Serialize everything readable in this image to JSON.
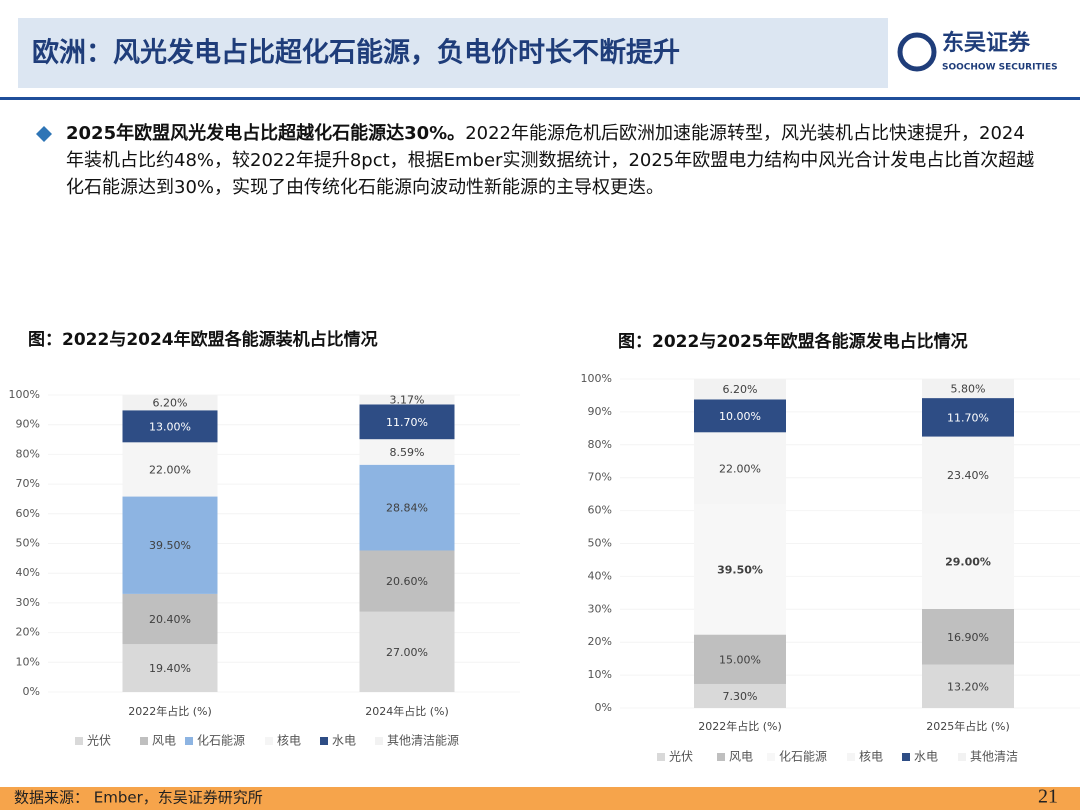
{
  "header": {
    "title": "欧洲：风光发电占比超化石能源，负电价时长不断提升",
    "logo": "东吴证券",
    "logo_sub": "SOOCHOW SECURITIES"
  },
  "bullet": {
    "bold": "2025年欧盟风光发电占比超越化石能源达30%。",
    "text": "2022年能源危机后欧洲加速能源转型，风光装机占比快速提升，2024年装机占比约48%，较2022年提升8pct，根据Ember实测数据统计，2025年欧盟电力结构中风光合计发电占比首次超越化石能源达到30%，实现了由传统化石能源向波动性新能源的主导权更迭。"
  },
  "footer": {
    "source": "数据来源： Ember，东吴证券研究所",
    "page": "21"
  },
  "chart_data": [
    {
      "type": "bar",
      "stacked": "percent",
      "title": "图：2022与2024年欧盟各能源装机占比情况",
      "categories": [
        "2022年占比 (%)",
        "2024年占比 (%)"
      ],
      "series": [
        {
          "name": "光伏",
          "color": "#d9d9d9",
          "values": [
            19.4,
            27.0
          ],
          "value_labels": [
            "19.40%",
            "27.00%"
          ]
        },
        {
          "name": "风电",
          "color": "#bfbfbf",
          "values": [
            20.4,
            20.6
          ],
          "value_labels": [
            "20.40%",
            "20.60%"
          ]
        },
        {
          "name": "化石能源",
          "color": "#8db4e2",
          "values": [
            39.5,
            28.84
          ],
          "value_labels": [
            "39.50%",
            "28.84%"
          ]
        },
        {
          "name": "核电",
          "color": "#f5f5f5",
          "values": [
            22.0,
            8.59
          ],
          "value_labels": [
            "22.00%",
            "8.59%"
          ]
        },
        {
          "name": "水电",
          "color": "#2e4d85",
          "values": [
            13.0,
            11.7
          ],
          "value_labels": [
            "13.00%",
            "11.70%"
          ]
        },
        {
          "name": "其他清洁能源",
          "color": "#f2f2f2",
          "values": [
            6.2,
            3.17
          ],
          "value_labels": [
            "6.20%",
            "3.17%"
          ]
        }
      ],
      "ylim": [
        0,
        100
      ],
      "yticks": [
        {
          "value": 0,
          "label": "0%"
        },
        {
          "value": 10,
          "label": "10%"
        },
        {
          "value": 20,
          "label": "20%"
        },
        {
          "value": 30,
          "label": "30%"
        },
        {
          "value": 40,
          "label": "40%"
        },
        {
          "value": 50,
          "label": "50%"
        },
        {
          "value": 60,
          "label": "60%"
        },
        {
          "value": 70,
          "label": "70%"
        },
        {
          "value": 80,
          "label": "80%"
        },
        {
          "value": 90,
          "label": "90%"
        },
        {
          "value": 100,
          "label": "100%"
        }
      ],
      "legend": "bottom"
    },
    {
      "type": "bar",
      "stacked": "percent",
      "title": "图：2022与2025年欧盟各能源发电占比情况",
      "categories": [
        "2022年占比 (%)",
        "2025年占比 (%)"
      ],
      "series": [
        {
          "name": "光伏",
          "color": "#d9d9d9",
          "values": [
            7.3,
            13.2
          ],
          "value_labels": [
            "7.30%",
            "13.20%"
          ]
        },
        {
          "name": "风电",
          "color": "#bfbfbf",
          "values": [
            15.0,
            16.9
          ],
          "value_labels": [
            "15.00%",
            "16.90%"
          ]
        },
        {
          "name": "化石能源",
          "color": "#f7f7f7",
          "values": [
            39.5,
            29.0
          ],
          "value_labels": [
            "39.50%",
            "29.00%"
          ],
          "label_bold": true
        },
        {
          "name": "核电",
          "color": "#f5f5f5",
          "values": [
            22.0,
            23.4
          ],
          "value_labels": [
            "22.00%",
            "23.40%"
          ]
        },
        {
          "name": "水电",
          "color": "#2e4d85",
          "values": [
            10.0,
            11.7
          ],
          "value_labels": [
            "10.00%",
            "11.70%"
          ]
        },
        {
          "name": "其他清洁",
          "color": "#f2f2f2",
          "values": [
            6.2,
            5.8
          ],
          "value_labels": [
            "6.20%",
            "5.80%"
          ]
        }
      ],
      "ylim": [
        0,
        100
      ],
      "yticks": [
        {
          "value": 0,
          "label": "0%"
        },
        {
          "value": 10,
          "label": "10%"
        },
        {
          "value": 20,
          "label": "20%"
        },
        {
          "value": 30,
          "label": "30%"
        },
        {
          "value": 40,
          "label": "40%"
        },
        {
          "value": 50,
          "label": "50%"
        },
        {
          "value": 60,
          "label": "60%"
        },
        {
          "value": 70,
          "label": "70%"
        },
        {
          "value": 80,
          "label": "80%"
        },
        {
          "value": 90,
          "label": "90%"
        },
        {
          "value": 100,
          "label": "100%"
        }
      ],
      "legend": "bottom"
    }
  ]
}
